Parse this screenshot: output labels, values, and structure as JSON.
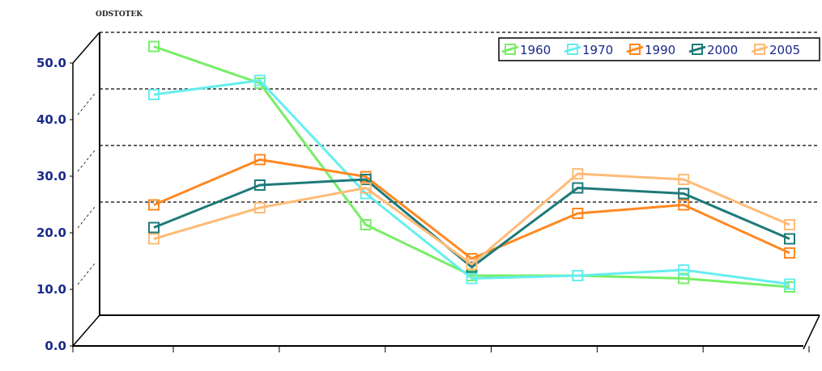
{
  "chart_data": {
    "type": "line",
    "ylabel": "ODSTOTEK",
    "xlabel": "",
    "title": "",
    "ylim": [
      0,
      50
    ],
    "yticks": [
      "0.0",
      "10.0",
      "20.0",
      "30.0",
      "40.0",
      "50.0"
    ],
    "ytick_values": [
      0,
      10,
      20,
      30,
      40,
      50
    ],
    "gridlines": [
      20,
      30,
      40,
      50
    ],
    "categories": [
      "",
      "",
      "",
      "",
      "",
      "",
      ""
    ],
    "legend_position": "top-right",
    "series": [
      {
        "name": "1960",
        "color": "#77ee66",
        "values": [
          47.5,
          41.0,
          16.0,
          7.0,
          7.0,
          6.5,
          5.0
        ]
      },
      {
        "name": "1970",
        "color": "#66eeee",
        "values": [
          39.0,
          41.5,
          21.5,
          6.5,
          7.0,
          8.0,
          5.5
        ]
      },
      {
        "name": "1990",
        "color": "#ff8822",
        "values": [
          19.5,
          27.5,
          24.5,
          10.0,
          18.0,
          19.5,
          11.0
        ]
      },
      {
        "name": "2000",
        "color": "#1e7a78",
        "values": [
          15.5,
          23.0,
          24.0,
          8.5,
          22.5,
          21.5,
          13.5
        ]
      },
      {
        "name": "2005",
        "color": "#ffbb77",
        "values": [
          13.5,
          19.0,
          22.5,
          9.0,
          25.0,
          24.0,
          16.0
        ]
      }
    ]
  }
}
